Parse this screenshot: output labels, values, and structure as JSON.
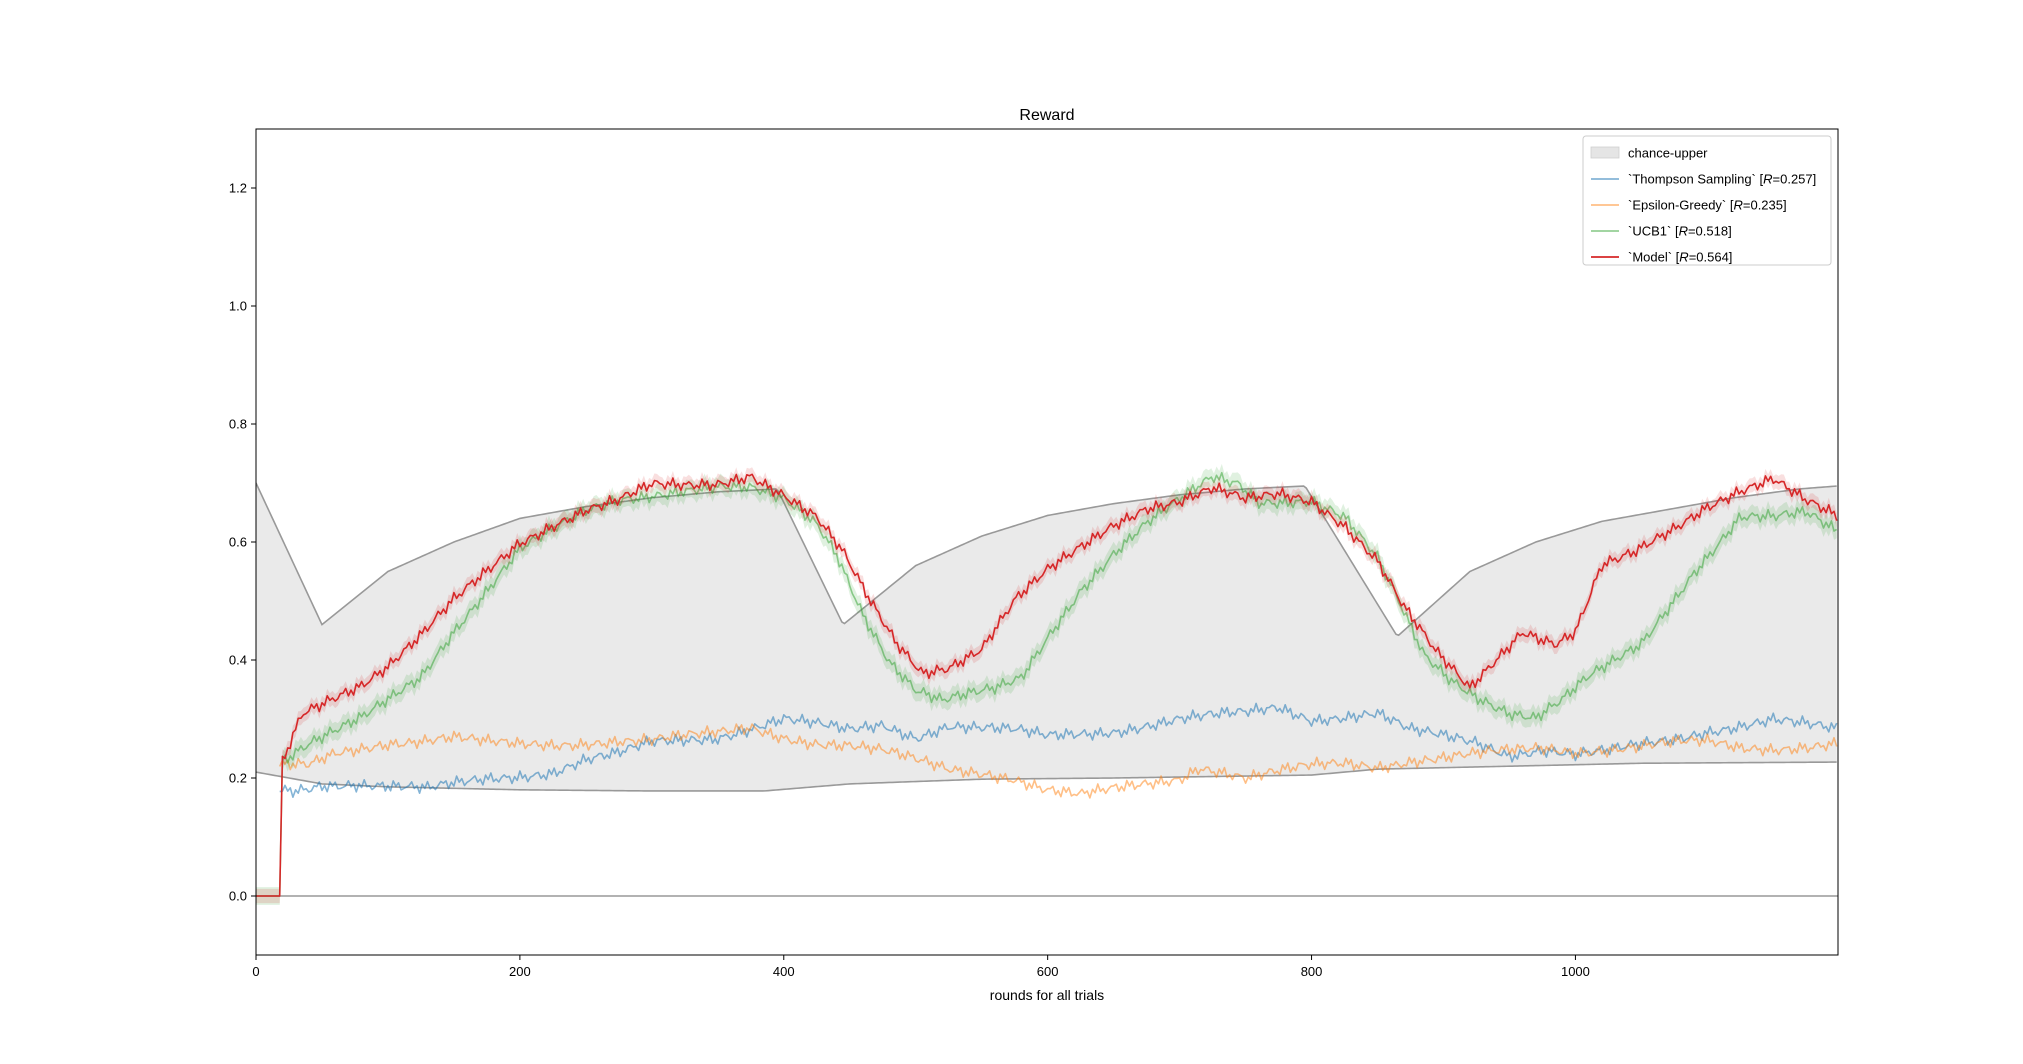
{
  "chart_data": {
    "type": "line",
    "title": "Reward",
    "xlabel": "rounds for all trials",
    "ylabel": "",
    "xlim": [
      0,
      1199
    ],
    "ylim": [
      -0.1,
      1.3
    ],
    "xticks": [
      0,
      200,
      400,
      600,
      800,
      1000
    ],
    "xtick_labels": [
      "0",
      "200",
      "400",
      "600",
      "800",
      "1000"
    ],
    "yticks": [
      0.0,
      0.2,
      0.4,
      0.6,
      0.8,
      1.0,
      1.2
    ],
    "ytick_labels": [
      "0.0",
      "0.2",
      "0.4",
      "0.6",
      "0.8",
      "1.0",
      "1.2"
    ],
    "grid": false,
    "legend_position": "top-right",
    "chance_band": {
      "name": "chance-upper",
      "color": "#e5e5e5",
      "edge_color": "#999999",
      "upper": [
        [
          0,
          0.7
        ],
        [
          50,
          0.46
        ],
        [
          100,
          0.55
        ],
        [
          150,
          0.6
        ],
        [
          200,
          0.64
        ],
        [
          250,
          0.66
        ],
        [
          300,
          0.675
        ],
        [
          350,
          0.685
        ],
        [
          395,
          0.69
        ],
        [
          445,
          0.46
        ],
        [
          500,
          0.56
        ],
        [
          550,
          0.61
        ],
        [
          600,
          0.645
        ],
        [
          650,
          0.665
        ],
        [
          700,
          0.68
        ],
        [
          750,
          0.69
        ],
        [
          795,
          0.695
        ],
        [
          865,
          0.44
        ],
        [
          920,
          0.55
        ],
        [
          970,
          0.6
        ],
        [
          1020,
          0.635
        ],
        [
          1070,
          0.655
        ],
        [
          1120,
          0.675
        ],
        [
          1170,
          0.69
        ],
        [
          1199,
          0.695
        ]
      ],
      "lower": [
        [
          0,
          0.21
        ],
        [
          50,
          0.19
        ],
        [
          100,
          0.185
        ],
        [
          200,
          0.18
        ],
        [
          300,
          0.178
        ],
        [
          385,
          0.178
        ],
        [
          450,
          0.19
        ],
        [
          550,
          0.198
        ],
        [
          650,
          0.2
        ],
        [
          800,
          0.205
        ],
        [
          850,
          0.215
        ],
        [
          950,
          0.22
        ],
        [
          1050,
          0.225
        ],
        [
          1199,
          0.227
        ]
      ]
    },
    "baseline": {
      "y": 0.0,
      "color": "#999999"
    },
    "series": [
      {
        "name": "`Thompson Sampling` [",
        "name_var": "R",
        "name_value": "=0.257]",
        "color": "#1f77b4",
        "opacity": 0.55,
        "band": false,
        "points": [
          [
            18,
            0.18
          ],
          [
            30,
            0.18
          ],
          [
            50,
            0.19
          ],
          [
            75,
            0.19
          ],
          [
            100,
            0.185
          ],
          [
            130,
            0.18
          ],
          [
            150,
            0.19
          ],
          [
            175,
            0.2
          ],
          [
            200,
            0.205
          ],
          [
            225,
            0.21
          ],
          [
            250,
            0.23
          ],
          [
            275,
            0.24
          ],
          [
            300,
            0.26
          ],
          [
            325,
            0.265
          ],
          [
            350,
            0.27
          ],
          [
            375,
            0.285
          ],
          [
            400,
            0.3
          ],
          [
            425,
            0.29
          ],
          [
            450,
            0.28
          ],
          [
            475,
            0.29
          ],
          [
            500,
            0.27
          ],
          [
            525,
            0.29
          ],
          [
            550,
            0.285
          ],
          [
            575,
            0.28
          ],
          [
            600,
            0.27
          ],
          [
            625,
            0.275
          ],
          [
            650,
            0.28
          ],
          [
            675,
            0.29
          ],
          [
            700,
            0.3
          ],
          [
            725,
            0.305
          ],
          [
            750,
            0.31
          ],
          [
            775,
            0.32
          ],
          [
            800,
            0.3
          ],
          [
            825,
            0.305
          ],
          [
            850,
            0.31
          ],
          [
            875,
            0.28
          ],
          [
            900,
            0.27
          ],
          [
            925,
            0.26
          ],
          [
            950,
            0.24
          ],
          [
            975,
            0.25
          ],
          [
            1000,
            0.24
          ],
          [
            1025,
            0.245
          ],
          [
            1050,
            0.255
          ],
          [
            1075,
            0.265
          ],
          [
            1100,
            0.28
          ],
          [
            1125,
            0.29
          ],
          [
            1150,
            0.3
          ],
          [
            1175,
            0.29
          ],
          [
            1199,
            0.28
          ]
        ]
      },
      {
        "name": "`Epsilon-Greedy` [",
        "name_var": "R",
        "name_value": "=0.235]",
        "color": "#ff7f0e",
        "opacity": 0.5,
        "band": false,
        "points": [
          [
            18,
            0.22
          ],
          [
            40,
            0.22
          ],
          [
            60,
            0.24
          ],
          [
            80,
            0.25
          ],
          [
            100,
            0.26
          ],
          [
            125,
            0.265
          ],
          [
            150,
            0.27
          ],
          [
            175,
            0.26
          ],
          [
            200,
            0.255
          ],
          [
            225,
            0.255
          ],
          [
            250,
            0.26
          ],
          [
            275,
            0.265
          ],
          [
            300,
            0.265
          ],
          [
            325,
            0.27
          ],
          [
            350,
            0.275
          ],
          [
            375,
            0.285
          ],
          [
            400,
            0.27
          ],
          [
            425,
            0.26
          ],
          [
            450,
            0.255
          ],
          [
            475,
            0.245
          ],
          [
            500,
            0.23
          ],
          [
            525,
            0.215
          ],
          [
            550,
            0.21
          ],
          [
            575,
            0.2
          ],
          [
            600,
            0.18
          ],
          [
            625,
            0.17
          ],
          [
            650,
            0.18
          ],
          [
            675,
            0.19
          ],
          [
            700,
            0.2
          ],
          [
            715,
            0.22
          ],
          [
            735,
            0.21
          ],
          [
            750,
            0.2
          ],
          [
            775,
            0.21
          ],
          [
            800,
            0.22
          ],
          [
            825,
            0.225
          ],
          [
            850,
            0.22
          ],
          [
            875,
            0.23
          ],
          [
            900,
            0.235
          ],
          [
            925,
            0.24
          ],
          [
            950,
            0.245
          ],
          [
            975,
            0.25
          ],
          [
            1000,
            0.245
          ],
          [
            1025,
            0.25
          ],
          [
            1050,
            0.255
          ],
          [
            1075,
            0.26
          ],
          [
            1100,
            0.26
          ],
          [
            1125,
            0.25
          ],
          [
            1150,
            0.25
          ],
          [
            1175,
            0.255
          ],
          [
            1199,
            0.26
          ]
        ]
      },
      {
        "name": "`UCB1` [",
        "name_var": "R",
        "name_value": "=0.518]",
        "color": "#2ca02c",
        "opacity": 0.5,
        "band": true,
        "band_width": 0.015,
        "points": [
          [
            0,
            0.0
          ],
          [
            18,
            0.0
          ],
          [
            19,
            0.23
          ],
          [
            40,
            0.26
          ],
          [
            60,
            0.28
          ],
          [
            80,
            0.3
          ],
          [
            100,
            0.33
          ],
          [
            125,
            0.37
          ],
          [
            150,
            0.45
          ],
          [
            175,
            0.52
          ],
          [
            200,
            0.59
          ],
          [
            225,
            0.62
          ],
          [
            250,
            0.65
          ],
          [
            275,
            0.67
          ],
          [
            300,
            0.68
          ],
          [
            325,
            0.69
          ],
          [
            350,
            0.695
          ],
          [
            375,
            0.69
          ],
          [
            400,
            0.67
          ],
          [
            425,
            0.63
          ],
          [
            440,
            0.58
          ],
          [
            460,
            0.48
          ],
          [
            480,
            0.4
          ],
          [
            500,
            0.35
          ],
          [
            520,
            0.33
          ],
          [
            540,
            0.34
          ],
          [
            560,
            0.35
          ],
          [
            580,
            0.37
          ],
          [
            600,
            0.44
          ],
          [
            625,
            0.52
          ],
          [
            650,
            0.58
          ],
          [
            675,
            0.63
          ],
          [
            700,
            0.67
          ],
          [
            725,
            0.71
          ],
          [
            745,
            0.7
          ],
          [
            760,
            0.67
          ],
          [
            775,
            0.67
          ],
          [
            800,
            0.67
          ],
          [
            825,
            0.64
          ],
          [
            850,
            0.57
          ],
          [
            870,
            0.48
          ],
          [
            885,
            0.41
          ],
          [
            905,
            0.37
          ],
          [
            925,
            0.34
          ],
          [
            950,
            0.31
          ],
          [
            970,
            0.3
          ],
          [
            990,
            0.33
          ],
          [
            1010,
            0.37
          ],
          [
            1030,
            0.4
          ],
          [
            1050,
            0.43
          ],
          [
            1070,
            0.49
          ],
          [
            1090,
            0.55
          ],
          [
            1110,
            0.6
          ],
          [
            1125,
            0.64
          ],
          [
            1150,
            0.64
          ],
          [
            1175,
            0.65
          ],
          [
            1199,
            0.62
          ]
        ]
      },
      {
        "name": "`Model` [",
        "name_var": "R",
        "name_value": "=0.564]",
        "color": "#d62728",
        "opacity": 1.0,
        "band": true,
        "band_width": 0.012,
        "points": [
          [
            0,
            0.0
          ],
          [
            18,
            0.0
          ],
          [
            19,
            0.22
          ],
          [
            35,
            0.31
          ],
          [
            60,
            0.34
          ],
          [
            80,
            0.36
          ],
          [
            100,
            0.39
          ],
          [
            125,
            0.44
          ],
          [
            150,
            0.5
          ],
          [
            175,
            0.55
          ],
          [
            200,
            0.6
          ],
          [
            225,
            0.63
          ],
          [
            250,
            0.655
          ],
          [
            275,
            0.67
          ],
          [
            300,
            0.695
          ],
          [
            325,
            0.695
          ],
          [
            350,
            0.7
          ],
          [
            375,
            0.715
          ],
          [
            400,
            0.68
          ],
          [
            425,
            0.64
          ],
          [
            445,
            0.58
          ],
          [
            465,
            0.5
          ],
          [
            485,
            0.43
          ],
          [
            505,
            0.38
          ],
          [
            525,
            0.39
          ],
          [
            550,
            0.42
          ],
          [
            575,
            0.5
          ],
          [
            600,
            0.55
          ],
          [
            625,
            0.59
          ],
          [
            650,
            0.63
          ],
          [
            675,
            0.66
          ],
          [
            700,
            0.67
          ],
          [
            725,
            0.69
          ],
          [
            750,
            0.67
          ],
          [
            775,
            0.68
          ],
          [
            800,
            0.67
          ],
          [
            825,
            0.63
          ],
          [
            850,
            0.57
          ],
          [
            870,
            0.49
          ],
          [
            895,
            0.41
          ],
          [
            920,
            0.35
          ],
          [
            940,
            0.4
          ],
          [
            960,
            0.45
          ],
          [
            985,
            0.43
          ],
          [
            1000,
            0.45
          ],
          [
            1020,
            0.56
          ],
          [
            1045,
            0.58
          ],
          [
            1075,
            0.62
          ],
          [
            1100,
            0.66
          ],
          [
            1125,
            0.69
          ],
          [
            1150,
            0.71
          ],
          [
            1175,
            0.67
          ],
          [
            1199,
            0.64
          ]
        ]
      }
    ]
  }
}
